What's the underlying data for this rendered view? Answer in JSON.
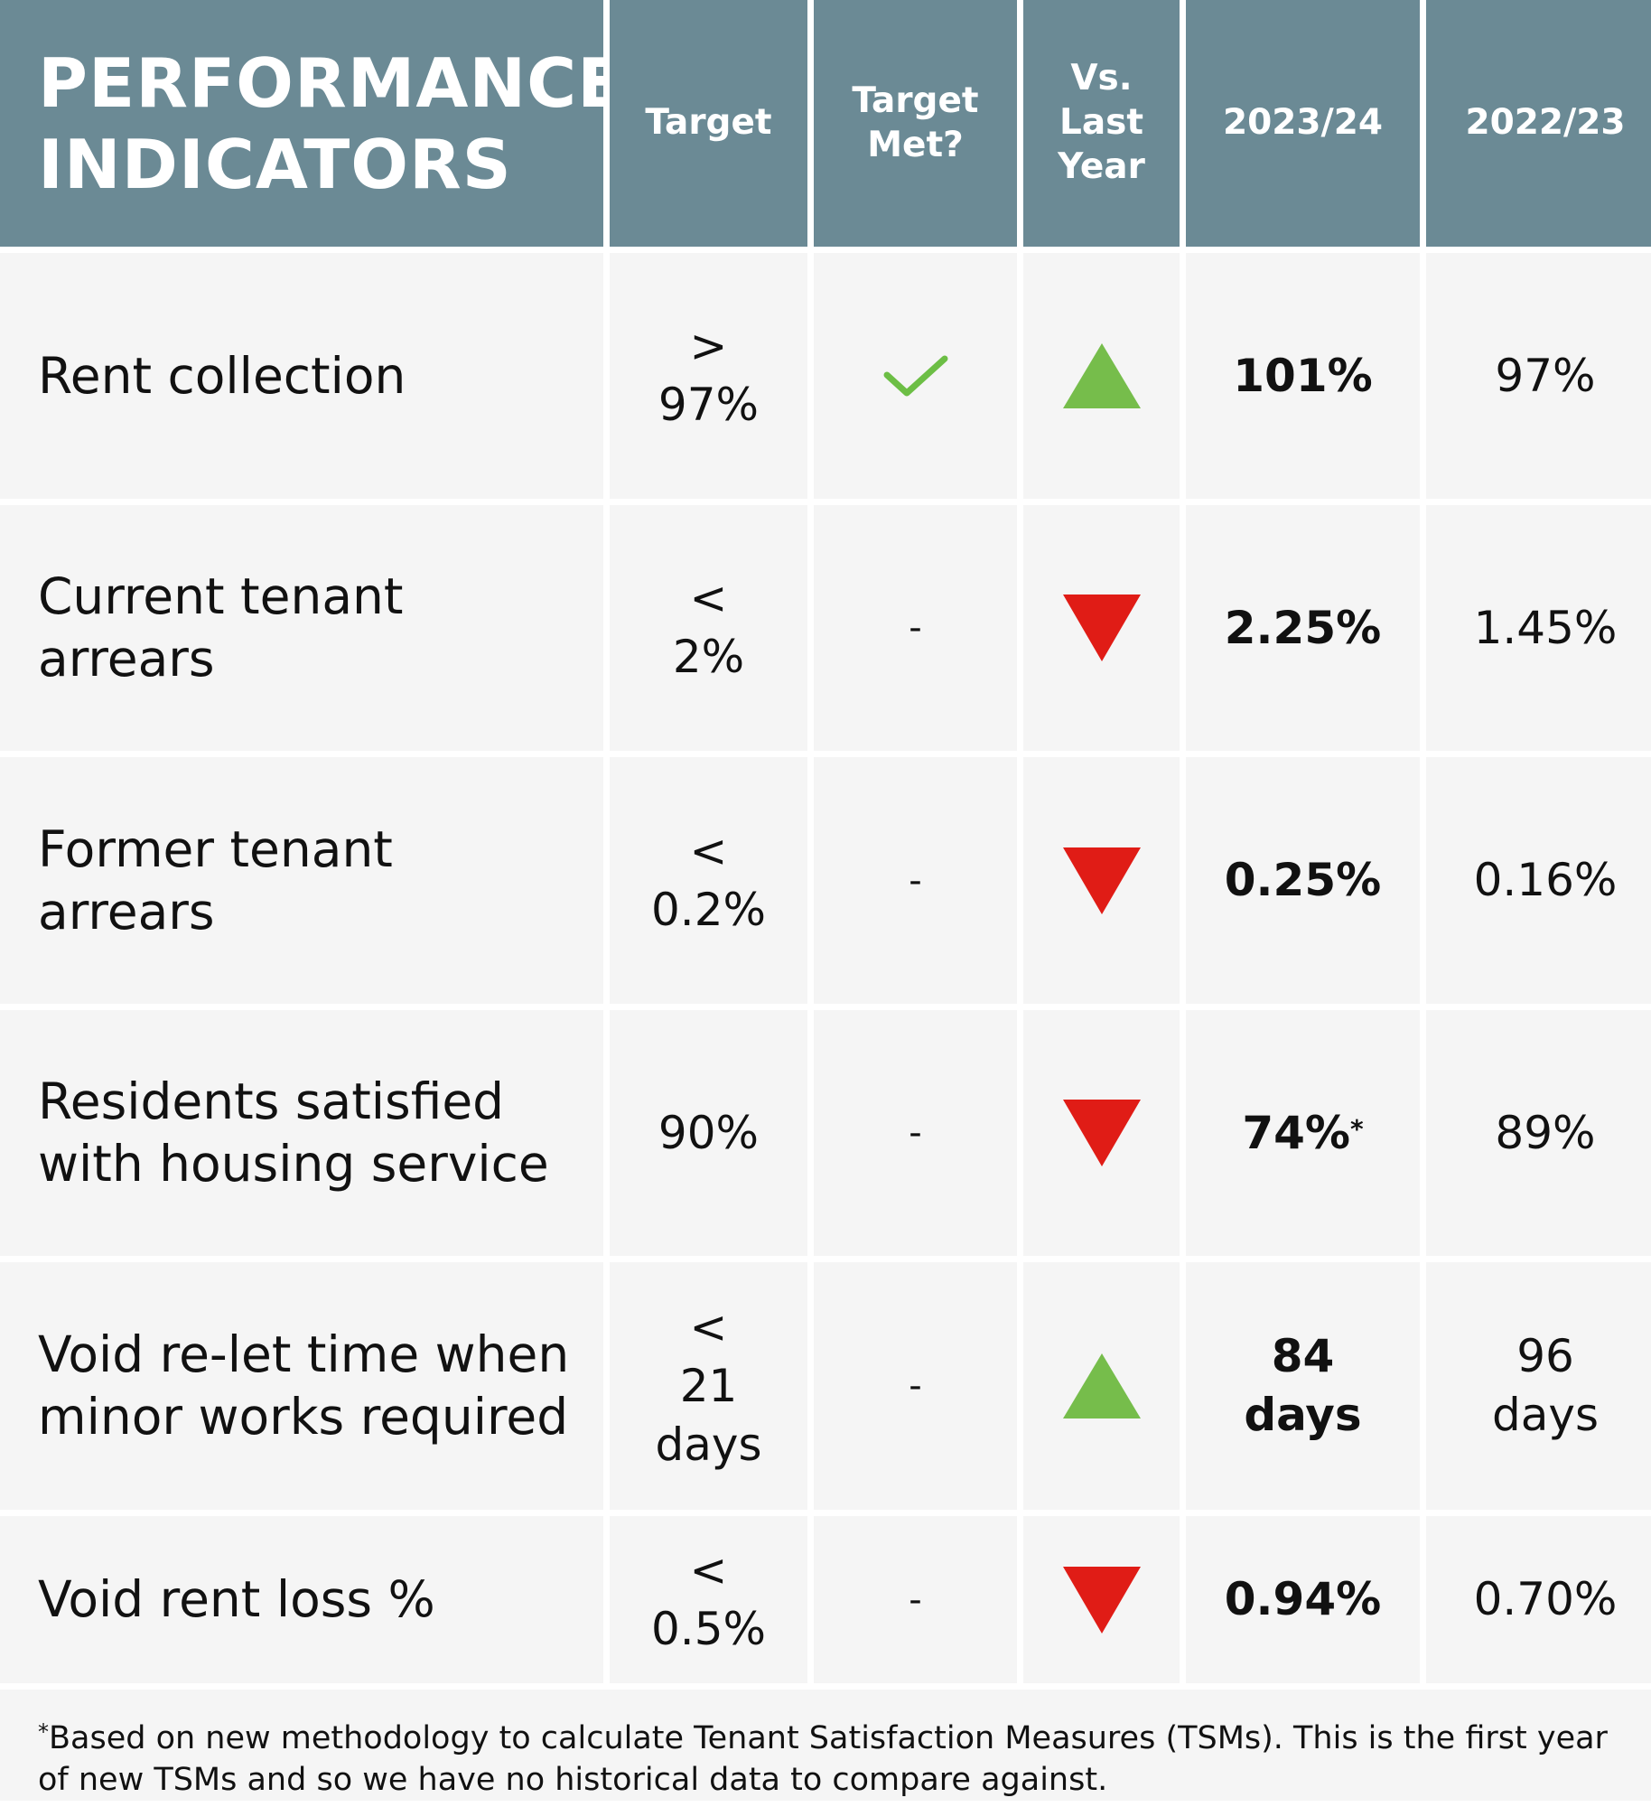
{
  "header": {
    "title": "PERFORMANCE\nINDICATORS",
    "col_target": "Target",
    "col_target_met": "Target\nMet?",
    "col_vs_last_year": "Vs.\nLast\nYear",
    "col_current": "2023/24",
    "col_previous": "2022/23"
  },
  "colors": {
    "header_bg": "#6b8a95",
    "row_bg": "#f5f5f5",
    "up": "#76bd4b",
    "down": "#e01c16",
    "check": "#6cbe45"
  },
  "rows": [
    {
      "indicator": "Rent collection",
      "target": ">\n97%",
      "target_met": "check-icon",
      "trend": "up",
      "current": "101%",
      "current_mark": "",
      "previous": "97%"
    },
    {
      "indicator": "Current tenant\narrears",
      "target": "<\n2%",
      "target_met": "-",
      "trend": "down",
      "current": "2.25%",
      "current_mark": "",
      "previous": "1.45%"
    },
    {
      "indicator": "Former tenant\narrears",
      "target": "<\n0.2%",
      "target_met": "-",
      "trend": "down",
      "current": "0.25%",
      "current_mark": "",
      "previous": "0.16%"
    },
    {
      "indicator": "Residents satisfied\nwith housing service",
      "target": "90%",
      "target_met": "-",
      "trend": "down",
      "current": "74%",
      "current_mark": "*",
      "previous": "89%"
    },
    {
      "indicator": "Void re-let time when\nminor works required",
      "target": "<\n21\ndays",
      "target_met": "-",
      "trend": "up",
      "current": "84\ndays",
      "current_mark": "",
      "previous": "96\ndays"
    },
    {
      "indicator": "Void rent loss %",
      "target": "<\n0.5%",
      "target_met": "-",
      "trend": "down",
      "current": "0.94%",
      "current_mark": "",
      "previous": "0.70%"
    }
  ],
  "footnote": {
    "mark": "*",
    "text": "Based on new methodology to calculate Tenant Satisfaction Measures (TSMs). This is the first year of new TSMs and so we have no historical data to compare against."
  }
}
